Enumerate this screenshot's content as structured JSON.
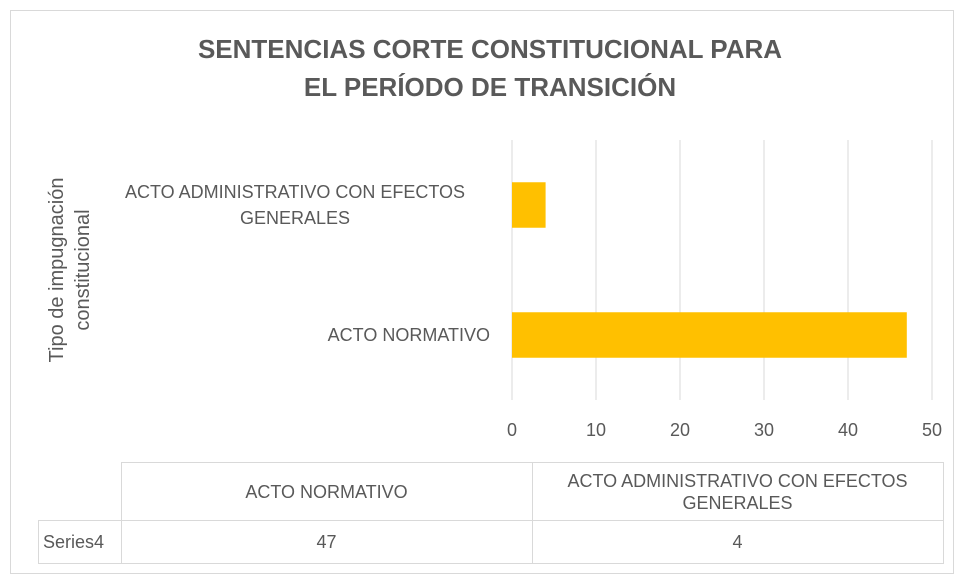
{
  "chart_data": {
    "type": "bar",
    "orientation": "horizontal",
    "title": "SENTENCIAS CORTE CONSTITUCIONAL PARA EL PERÍODO DE TRANSICIÓN",
    "y_label": "Tipo de impugnación constitucional",
    "categories": [
      "ACTO NORMATIVO",
      "ACTO ADMINISTRATIVO CON EFECTOS GENERALES"
    ],
    "series": [
      {
        "name": "Series4",
        "color": "#ffc000",
        "values": [
          47,
          4
        ]
      }
    ],
    "xlim": [
      0,
      50
    ],
    "xticks": [
      0,
      10,
      20,
      30,
      40,
      50
    ],
    "grid": true,
    "data_table": true
  }
}
